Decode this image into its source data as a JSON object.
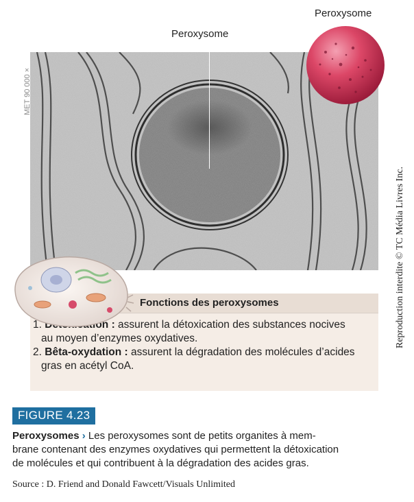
{
  "micrograph": {
    "magnification": "MET 90 000 ×",
    "label": "Peroxysome"
  },
  "sphere": {
    "label": "Peroxysome"
  },
  "copyright": "Reproduction interdite © TC Média Livres Inc.",
  "functions": {
    "title": "Fonctions des peroxysomes",
    "items": [
      {
        "num": "1.",
        "term": "Détoxication :",
        "line1": " assurent la détoxication des substances nocives",
        "line2": "au moyen d’enzymes oxydatives."
      },
      {
        "num": "2.",
        "term": "Bêta-oxydation :",
        "line1": " assurent la dégradation des molécules d’acides",
        "line2": "gras en acétyl CoA."
      }
    ]
  },
  "figure": {
    "tag": "FIGURE 4.23",
    "caption_title": "Peroxysomes",
    "caption_arrow": "›",
    "caption_line1": " Les peroxysomes sont de petits organites à mem-",
    "caption_line2": "brane contenant des enzymes oxydatives qui permettent la détoxication",
    "caption_line3": "de molécules et qui contribuent à la dégradation des acides gras."
  },
  "source": "Source : D. Friend and Donald Fawcett/Visuals Unlimited",
  "colors": {
    "figure_tag": "#1f6fa0",
    "box_bg": "#f5ede6",
    "box_header": "#e8ddd4",
    "sphere": "#d63a5a"
  }
}
